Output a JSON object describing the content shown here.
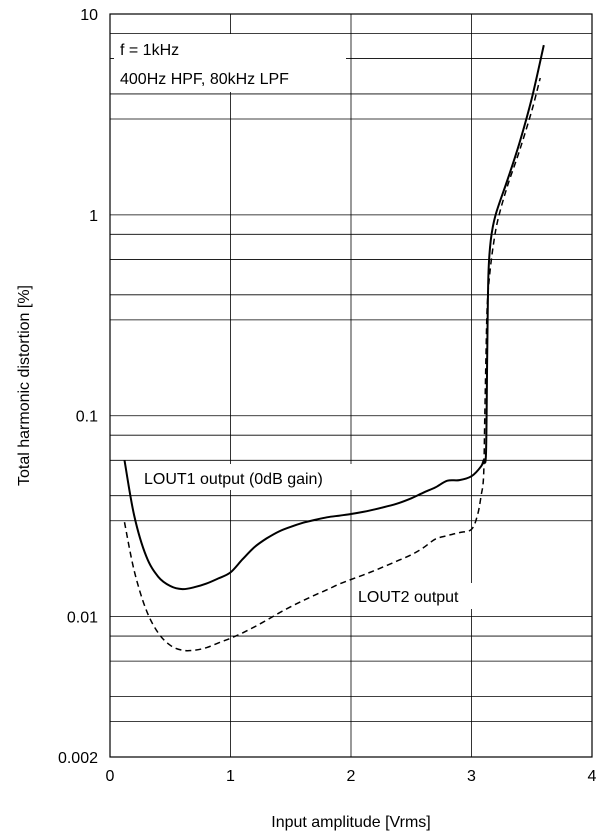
{
  "chart_data": {
    "type": "line",
    "xlabel": "Input amplitude [Vrms]",
    "ylabel": "Total harmonic distortion [%]",
    "xlim": [
      0,
      4
    ],
    "ylim": [
      0.002,
      10
    ],
    "y_scale": "log",
    "grid": true,
    "x_ticks": [
      0,
      1,
      2,
      3,
      4
    ],
    "x_tick_labels": [
      "0",
      "1",
      "2",
      "3",
      "4"
    ],
    "y_ticks": [
      0.002,
      0.01,
      0.1,
      1,
      10
    ],
    "y_tick_labels": [
      "0.002",
      "0.01",
      "0.1",
      "1",
      "10"
    ],
    "y_gridlines": [
      0.003,
      0.004,
      0.006,
      0.008,
      0.03,
      0.04,
      0.06,
      0.08,
      0.3,
      0.4,
      0.6,
      0.8,
      3,
      4,
      6,
      8
    ],
    "annotations": [
      "f = 1kHz",
      "400Hz HPF, 80kHz LPF"
    ],
    "series": [
      {
        "name": "LOUT1 output (0dB gain)",
        "style": "solid",
        "color": "#000000",
        "points": [
          [
            0.12,
            0.06
          ],
          [
            0.2,
            0.032
          ],
          [
            0.3,
            0.02
          ],
          [
            0.4,
            0.0158
          ],
          [
            0.5,
            0.0142
          ],
          [
            0.6,
            0.0137
          ],
          [
            0.7,
            0.014
          ],
          [
            0.8,
            0.0146
          ],
          [
            0.9,
            0.0155
          ],
          [
            1.0,
            0.0166
          ],
          [
            1.1,
            0.0193
          ],
          [
            1.2,
            0.0222
          ],
          [
            1.3,
            0.0245
          ],
          [
            1.4,
            0.0265
          ],
          [
            1.5,
            0.028
          ],
          [
            1.6,
            0.0293
          ],
          [
            1.7,
            0.0303
          ],
          [
            1.8,
            0.0312
          ],
          [
            1.9,
            0.0318
          ],
          [
            2.0,
            0.0324
          ],
          [
            2.1,
            0.0332
          ],
          [
            2.2,
            0.0342
          ],
          [
            2.3,
            0.0354
          ],
          [
            2.4,
            0.0368
          ],
          [
            2.5,
            0.0388
          ],
          [
            2.6,
            0.0414
          ],
          [
            2.7,
            0.044
          ],
          [
            2.8,
            0.0475
          ],
          [
            2.9,
            0.0478
          ],
          [
            3.0,
            0.05
          ],
          [
            3.08,
            0.056
          ],
          [
            3.1,
            0.06
          ],
          [
            3.12,
            0.065
          ],
          [
            3.13,
            0.2
          ],
          [
            3.14,
            0.5
          ],
          [
            3.16,
            0.75
          ],
          [
            3.2,
            1.0
          ],
          [
            3.3,
            1.5
          ],
          [
            3.4,
            2.3
          ],
          [
            3.5,
            3.8
          ],
          [
            3.6,
            7.0
          ]
        ]
      },
      {
        "name": "LOUT2 output",
        "style": "dashed",
        "color": "#000000",
        "points": [
          [
            0.12,
            0.0295
          ],
          [
            0.2,
            0.017
          ],
          [
            0.3,
            0.0108
          ],
          [
            0.4,
            0.0083
          ],
          [
            0.5,
            0.0072
          ],
          [
            0.6,
            0.0068
          ],
          [
            0.7,
            0.0068
          ],
          [
            0.8,
            0.007
          ],
          [
            0.9,
            0.0074
          ],
          [
            1.0,
            0.0078
          ],
          [
            1.1,
            0.0083
          ],
          [
            1.2,
            0.0089
          ],
          [
            1.3,
            0.0096
          ],
          [
            1.4,
            0.0104
          ],
          [
            1.5,
            0.0112
          ],
          [
            1.6,
            0.012
          ],
          [
            1.7,
            0.0128
          ],
          [
            1.8,
            0.0136
          ],
          [
            1.9,
            0.0145
          ],
          [
            2.0,
            0.0153
          ],
          [
            2.1,
            0.0161
          ],
          [
            2.2,
            0.017
          ],
          [
            2.3,
            0.018
          ],
          [
            2.4,
            0.0191
          ],
          [
            2.5,
            0.0203
          ],
          [
            2.6,
            0.022
          ],
          [
            2.7,
            0.0243
          ],
          [
            2.8,
            0.0253
          ],
          [
            2.9,
            0.0262
          ],
          [
            3.0,
            0.0272
          ],
          [
            3.05,
            0.032
          ],
          [
            3.08,
            0.04
          ],
          [
            3.1,
            0.05
          ],
          [
            3.11,
            0.1
          ],
          [
            3.12,
            0.2
          ],
          [
            3.13,
            0.35
          ],
          [
            3.15,
            0.5
          ],
          [
            3.18,
            0.7
          ],
          [
            3.22,
            0.95
          ],
          [
            3.3,
            1.4
          ],
          [
            3.4,
            2.1
          ],
          [
            3.5,
            3.3
          ],
          [
            3.57,
            4.8
          ]
        ]
      }
    ]
  }
}
